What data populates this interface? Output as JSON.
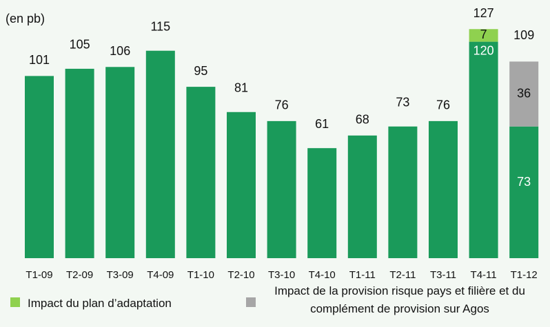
{
  "chart_data": {
    "type": "stacked_bar",
    "unit_label": "(en pb)",
    "categories": [
      "T1-09",
      "T2-09",
      "T3-09",
      "T4-09",
      "T1-10",
      "T2-10",
      "T3-10",
      "T4-10",
      "T1-11",
      "T2-11",
      "T3-11",
      "T4-11",
      "T1-12"
    ],
    "series": [
      {
        "color": "#1a9a5a",
        "values": [
          101,
          105,
          106,
          115,
          95,
          81,
          76,
          61,
          68,
          73,
          76,
          120,
          73
        ]
      },
      {
        "name": "Impact du plan d’adaptation",
        "color": "#8fd14f",
        "values": [
          null,
          null,
          null,
          null,
          null,
          null,
          null,
          null,
          null,
          null,
          null,
          7,
          null
        ]
      },
      {
        "name": "Impact de la provision risque pays et filière et du complément de provision sur Agos",
        "color": "#a6a6a6",
        "values": [
          null,
          null,
          null,
          null,
          null,
          null,
          null,
          null,
          null,
          null,
          null,
          null,
          36
        ]
      }
    ],
    "totals": [
      101,
      105,
      106,
      115,
      95,
      81,
      76,
      61,
      68,
      73,
      76,
      127,
      109
    ]
  }
}
